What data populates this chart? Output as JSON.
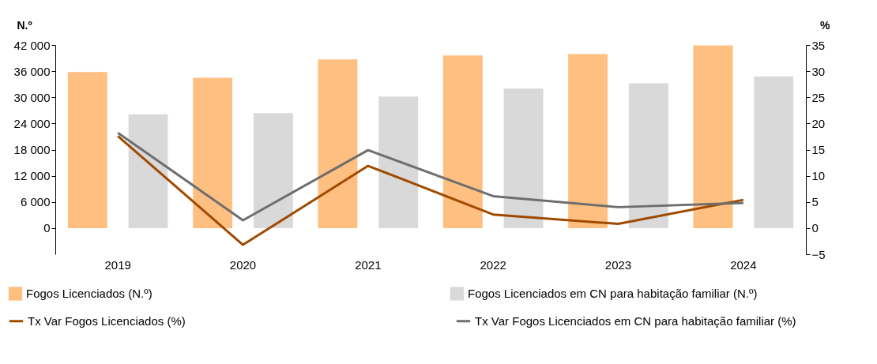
{
  "chart_data": {
    "type": "bar",
    "categories": [
      "2019",
      "2020",
      "2021",
      "2022",
      "2023",
      "2024"
    ],
    "ylabel": "N.º",
    "y2label": "%",
    "ylim": [
      -6000,
      42000
    ],
    "yticks": [
      {
        "value": 0,
        "label": "0"
      },
      {
        "value": 6000,
        "label": "6 000"
      },
      {
        "value": 12000,
        "label": "12 000"
      },
      {
        "value": 18000,
        "label": "18 000"
      },
      {
        "value": 24000,
        "label": "24 000"
      },
      {
        "value": 30000,
        "label": "30 000"
      },
      {
        "value": 36000,
        "label": "36 000"
      },
      {
        "value": 42000,
        "label": "42 000"
      }
    ],
    "y2lim": [
      -5,
      35
    ],
    "y2ticks": [
      -5,
      0,
      5,
      10,
      15,
      20,
      25,
      30,
      35
    ],
    "series": [
      {
        "name": "Fogos Licenciados (N.º)",
        "color": "#ffbf80",
        "values": [
          35800,
          34500,
          38700,
          39600,
          39900,
          41900
        ]
      },
      {
        "name": "Fogos Licenciados em CN para habitação familiar (N.º)",
        "color": "#d9d9d9",
        "values": [
          26100,
          26400,
          30200,
          32000,
          33200,
          34800
        ]
      },
      {
        "name": "Tx Var Fogos Licenciados (%)",
        "type": "line",
        "axis": "y2",
        "color": "#a04a00",
        "values": [
          17.6,
          -3.2,
          11.9,
          2.6,
          0.8,
          5.4
        ]
      },
      {
        "name": "Tx Var Fogos Licenciados em CN para habitação familiar (%)",
        "type": "line",
        "axis": "y2",
        "color": "#6e6e6e",
        "values": [
          18.2,
          1.5,
          14.9,
          6.1,
          4.0,
          4.8
        ]
      }
    ],
    "grid": false,
    "legend": "bottom",
    "marker": "none",
    "line_style": "solid"
  }
}
